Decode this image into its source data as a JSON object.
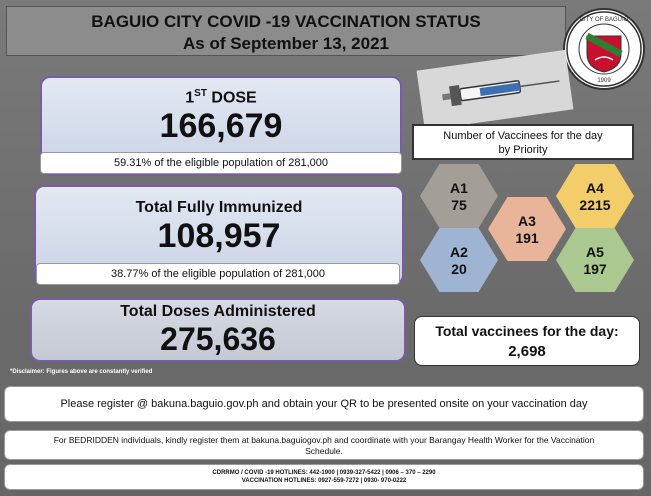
{
  "header": {
    "title": "BAGUIO CITY COVID -19 VACCINATION STATUS",
    "date": "As of September 13, 2021"
  },
  "seal": {
    "text_top": "CITY OF BAGUIO",
    "year": "1909"
  },
  "first_dose": {
    "label_prefix": "1",
    "label_sup": "ST",
    "label_suffix": " DOSE",
    "value": "166,679",
    "note": "59.31% of the eligible population of 281,000"
  },
  "fully_immunized": {
    "label": "Total Fully Immunized",
    "value": "108,957",
    "note": "38.77% of the eligible population of 281,000"
  },
  "total_doses": {
    "label": "Total Doses Administered",
    "value": "275,636"
  },
  "disclaimer": "*Disclaimer: Figures above are constantly verified",
  "priority": {
    "title_line1": "Number of  Vaccinees for the day",
    "title_line2": "by Priority",
    "groups": [
      {
        "name": "A1",
        "value": "75"
      },
      {
        "name": "A2",
        "value": "20"
      },
      {
        "name": "A3",
        "value": "191"
      },
      {
        "name": "A4",
        "value": "2215"
      },
      {
        "name": "A5",
        "value": "197"
      }
    ]
  },
  "total_day": {
    "label": "Total vaccinees for the day:",
    "value": "2,698"
  },
  "footer": {
    "register": "Please register @ bakuna.baguio.gov.ph and obtain your QR to be presented onsite  on your vaccination day",
    "bedridden_line1": "For BEDRIDDEN individuals, kindly register them at bakuna.baguiogov.ph and coordinate with your Barangay Health Worker for the Vaccination",
    "bedridden_line2": "Schedule.",
    "hotline1": "CDRRMO / COVID -19 HOTLINES: 442-1900 | 0939-327-5422 | 0906 – 370 – 2290",
    "hotline2": "VACCINATION HOTLINES: 0927-559-7272 | 0930- 970-0222"
  },
  "colors": {
    "hex_a1": "#a39e98",
    "hex_a2": "#9fb4d2",
    "hex_a3": "#e8b49a",
    "hex_a4": "#f2cd6a",
    "hex_a5": "#aac88f",
    "box_border": "#7b5aa6"
  }
}
